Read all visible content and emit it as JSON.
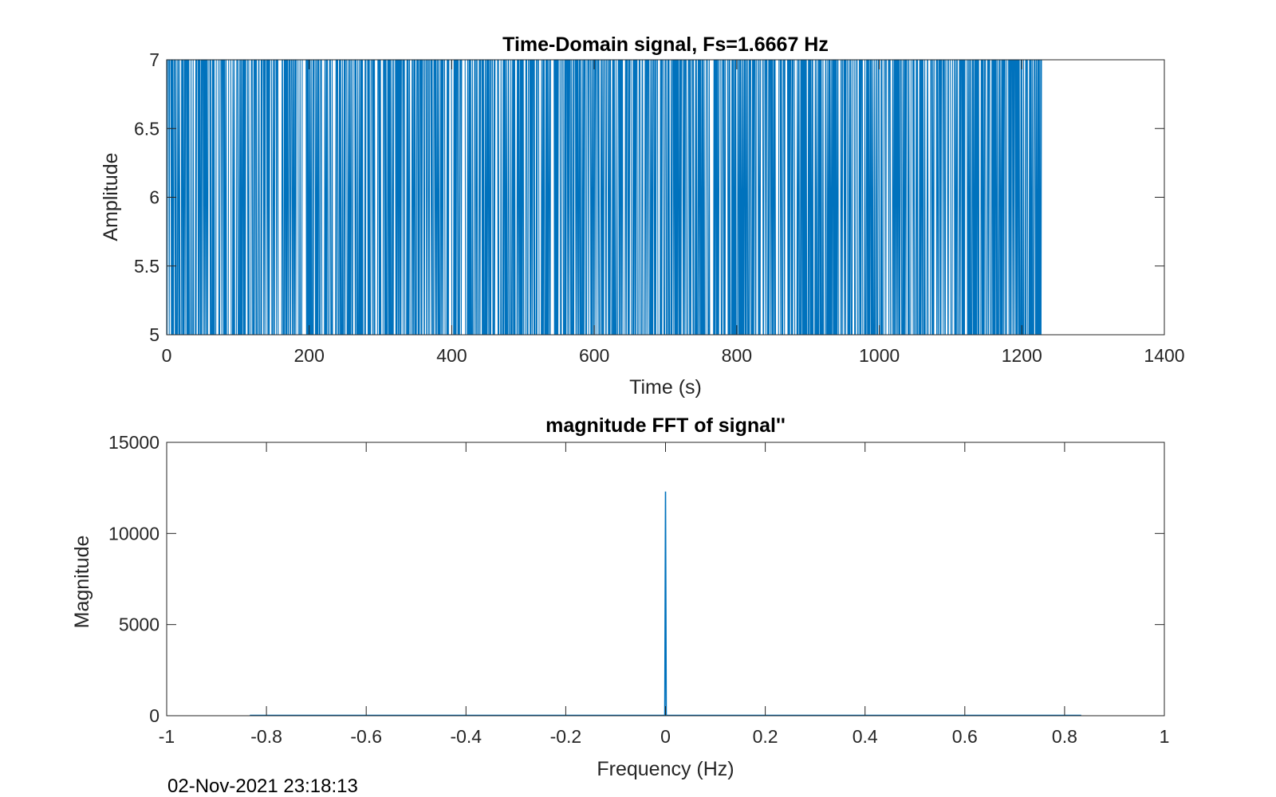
{
  "timestamp": "02-Nov-2021 23:18:13",
  "colors": {
    "series": "#0072BD",
    "axis": "#262626"
  },
  "chart_data": [
    {
      "type": "line",
      "title": "Time-Domain signal, Fs=1.6667 Hz",
      "xlabel": "Time (s)",
      "ylabel": "Amplitude",
      "xlim": [
        0,
        1400
      ],
      "ylim": [
        5,
        7
      ],
      "xticks": [
        "0",
        "200",
        "400",
        "600",
        "800",
        "1000",
        "1200",
        "1400"
      ],
      "yticks": [
        "5",
        "5.5",
        "6",
        "6.5",
        "7"
      ],
      "grid": false,
      "series": [
        {
          "signal_description": "binary signal switching between 5 and 7, sampled at Fs=1.6667 Hz",
          "sample_period_s": 0.6,
          "t_start": 0,
          "t_end": 1228,
          "levels": [
            5,
            7
          ]
        }
      ]
    },
    {
      "type": "line",
      "title": "magnitude FFT of signal''",
      "xlabel": "Frequency (Hz)",
      "ylabel": "Magnitude",
      "xlim": [
        -1,
        1
      ],
      "ylim": [
        0,
        15000
      ],
      "xticks": [
        "-1",
        "-0.8",
        "-0.6",
        "-0.4",
        "-0.2",
        "0",
        "0.2",
        "0.4",
        "0.6",
        "0.8",
        "1"
      ],
      "yticks": [
        "0",
        "5000",
        "10000",
        "15000"
      ],
      "grid": false,
      "series": [
        {
          "f_start": -0.8333,
          "f_end": 0.8333,
          "dc_peak": {
            "x": 0,
            "y": 12300
          },
          "baseline": 20
        }
      ]
    }
  ]
}
